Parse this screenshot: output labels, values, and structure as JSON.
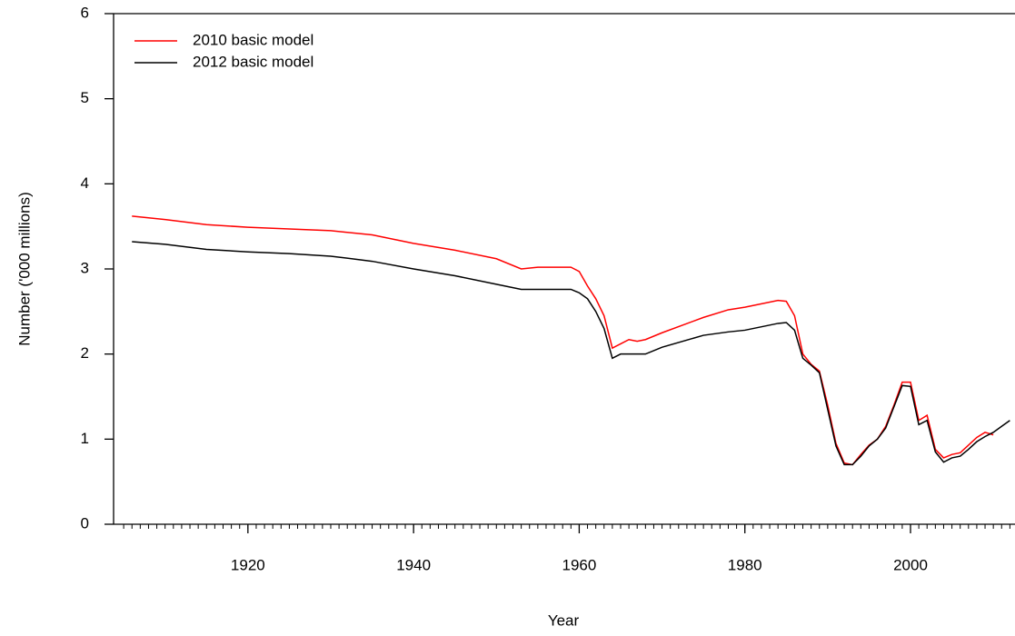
{
  "chart_data": {
    "type": "line",
    "x_label": "Year",
    "y_label": "Number ('000 millions)",
    "x": [
      1906,
      1910,
      1915,
      1920,
      1925,
      1930,
      1935,
      1940,
      1945,
      1950,
      1953,
      1955,
      1959,
      1960,
      1961,
      1962,
      1963,
      1964,
      1965,
      1966,
      1967,
      1968,
      1970,
      1975,
      1978,
      1980,
      1984,
      1985,
      1986,
      1987,
      1988,
      1989,
      1990,
      1991,
      1992,
      1993,
      1994,
      1995,
      1996,
      1997,
      1998,
      1999,
      2000,
      2001,
      2002,
      2003,
      2004,
      2005,
      2006,
      2007,
      2008,
      2009,
      2010,
      2011,
      2012
    ],
    "series": [
      {
        "name": "2010 basic model",
        "color": "#ff0000",
        "values": [
          3.62,
          3.58,
          3.52,
          3.49,
          3.47,
          3.45,
          3.4,
          3.3,
          3.22,
          3.12,
          3.0,
          3.02,
          3.02,
          2.97,
          2.8,
          2.65,
          2.45,
          2.07,
          2.12,
          2.17,
          2.15,
          2.17,
          2.25,
          2.43,
          2.52,
          2.55,
          2.63,
          2.62,
          2.45,
          2.0,
          1.88,
          1.8,
          1.4,
          0.95,
          0.72,
          0.7,
          0.82,
          0.93,
          1.0,
          1.15,
          1.4,
          1.67,
          1.67,
          1.22,
          1.28,
          0.88,
          0.78,
          0.82,
          0.84,
          0.93,
          1.02,
          1.08,
          1.05,
          null,
          null
        ]
      },
      {
        "name": "2012 basic model",
        "color": "#000000",
        "values": [
          3.32,
          3.29,
          3.23,
          3.2,
          3.18,
          3.15,
          3.09,
          3.0,
          2.92,
          2.82,
          2.76,
          2.76,
          2.76,
          2.72,
          2.65,
          2.5,
          2.3,
          1.95,
          2.0,
          2.0,
          2.0,
          2.0,
          2.08,
          2.22,
          2.26,
          2.28,
          2.36,
          2.37,
          2.28,
          1.95,
          1.87,
          1.78,
          1.35,
          0.92,
          0.7,
          0.7,
          0.8,
          0.92,
          1.0,
          1.13,
          1.38,
          1.63,
          1.62,
          1.17,
          1.22,
          0.85,
          0.73,
          0.78,
          0.8,
          0.88,
          0.97,
          1.03,
          1.08,
          1.15,
          1.22
        ]
      }
    ],
    "xlim": [
      1904,
      2013
    ],
    "xticks": [
      1920,
      1940,
      1960,
      1980,
      2000
    ],
    "ylim": [
      0,
      6
    ],
    "yticks": [
      0,
      1,
      2,
      3,
      4,
      5,
      6
    ],
    "legend": "top-left",
    "grid": false
  }
}
